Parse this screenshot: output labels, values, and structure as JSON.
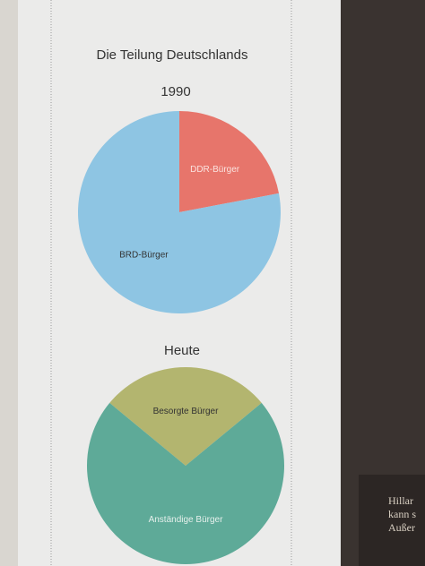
{
  "chart_data": [
    {
      "type": "pie",
      "title": "Die Teilung Deutschlands",
      "subtitle": "1990",
      "categories": [
        "DDR-Bürger",
        "BRD-Bürger"
      ],
      "values": [
        22,
        78
      ],
      "colors": [
        "#e7756b",
        "#8ec5e3"
      ]
    },
    {
      "type": "pie",
      "subtitle": "Heute",
      "categories": [
        "Besorgte Bürger",
        "Anständige Bürger"
      ],
      "values": [
        28,
        72
      ],
      "colors": [
        "#b3b56f",
        "#5eaa98"
      ]
    }
  ],
  "side_text": [
    "Hillar",
    "kann s",
    "Außer"
  ]
}
